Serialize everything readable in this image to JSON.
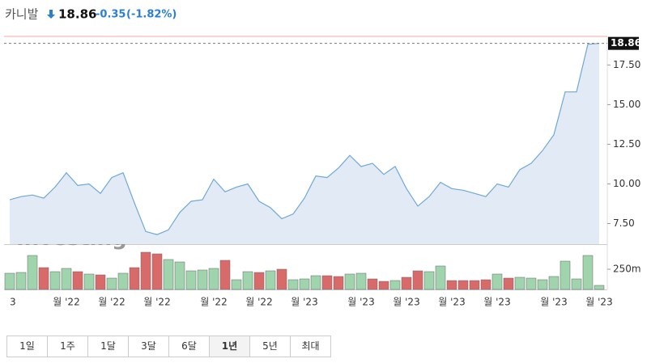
{
  "header": {
    "name": "카니발",
    "price": "18.86",
    "change": "-0.35",
    "change_pct": "(-1.82%)"
  },
  "chart_data": {
    "type": "line",
    "color": "#6fa8d6",
    "area_color": "#e2ebf5",
    "categories": [
      "3",
      null,
      null,
      null,
      null,
      "월 '22",
      null,
      null,
      null,
      "월 '22",
      null,
      null,
      null,
      "월 '22",
      null,
      null,
      null,
      null,
      "월 '22",
      null,
      null,
      null,
      "월 '22",
      null,
      null,
      null,
      "월 '23",
      null,
      null,
      null,
      null,
      "월 '23",
      null,
      null,
      null,
      "월 '23",
      null,
      null,
      null,
      "월 '23",
      null,
      null,
      null,
      "월 '23",
      null,
      null,
      null,
      null,
      "월 '23",
      null,
      null,
      null,
      "월 '23"
    ],
    "values": [
      9.0,
      9.2,
      9.3,
      9.1,
      9.8,
      10.7,
      9.9,
      10.0,
      9.4,
      10.4,
      10.7,
      8.8,
      7.0,
      6.8,
      7.1,
      8.2,
      8.9,
      9.0,
      10.3,
      9.5,
      9.8,
      10.0,
      8.9,
      8.5,
      7.8,
      8.1,
      9.1,
      10.5,
      10.4,
      11.0,
      11.8,
      11.1,
      11.3,
      10.6,
      11.1,
      9.7,
      8.6,
      9.2,
      10.1,
      9.7,
      9.6,
      9.4,
      9.2,
      10.0,
      9.8,
      10.9,
      11.3,
      12.1,
      13.1,
      15.8,
      15.8,
      18.8,
      18.86
    ],
    "ylim": [
      6.2,
      19.2
    ],
    "yticks": [
      {
        "value": 7.5,
        "label": "7.50"
      },
      {
        "value": 10,
        "label": "10.00"
      },
      {
        "value": 12.5,
        "label": "12.50"
      },
      {
        "value": 15,
        "label": "15.00"
      },
      {
        "value": 17.5,
        "label": "17.50"
      }
    ],
    "last": {
      "value": 18.86,
      "label": "18.86"
    },
    "grid": false,
    "volume": {
      "values": [
        200,
        210,
        420,
        270,
        220,
        260,
        220,
        190,
        180,
        140,
        200,
        270,
        460,
        440,
        370,
        340,
        230,
        240,
        260,
        360,
        120,
        220,
        210,
        230,
        250,
        120,
        130,
        170,
        170,
        160,
        190,
        200,
        130,
        100,
        110,
        150,
        230,
        220,
        290,
        110,
        110,
        110,
        120,
        190,
        140,
        150,
        140,
        120,
        160,
        350,
        130,
        420,
        50
      ],
      "colors": [
        "#9fd4ac",
        "#9fd4ac",
        "#9fd4ac",
        "#d96a6a",
        "#9fd4ac",
        "#9fd4ac",
        "#d96a6a",
        "#9fd4ac",
        "#d96a6a",
        "#9fd4ac",
        "#9fd4ac",
        "#d96a6a",
        "#d96a6a",
        "#d96a6a",
        "#9fd4ac",
        "#9fd4ac",
        "#9fd4ac",
        "#9fd4ac",
        "#9fd4ac",
        "#d96a6a",
        "#9fd4ac",
        "#9fd4ac",
        "#d96a6a",
        "#9fd4ac",
        "#d96a6a",
        "#9fd4ac",
        "#9fd4ac",
        "#9fd4ac",
        "#d96a6a",
        "#d96a6a",
        "#9fd4ac",
        "#9fd4ac",
        "#d96a6a",
        "#d96a6a",
        "#9fd4ac",
        "#d96a6a",
        "#d96a6a",
        "#9fd4ac",
        "#9fd4ac",
        "#d96a6a",
        "#d96a6a",
        "#d96a6a",
        "#d96a6a",
        "#9fd4ac",
        "#d96a6a",
        "#9fd4ac",
        "#9fd4ac",
        "#9fd4ac",
        "#9fd4ac",
        "#9fd4ac",
        "#9fd4ac",
        "#9fd4ac",
        "#9fd4ac"
      ],
      "ylim": [
        0,
        550
      ],
      "yticks": [
        {
          "value": 250,
          "label": "250m"
        }
      ]
    },
    "watermark": {
      "main": "Investing",
      "suffix": ".com"
    }
  },
  "ranges": {
    "buttons": [
      "1일",
      "1주",
      "1달",
      "3달",
      "6달",
      "1년",
      "5년",
      "최대"
    ],
    "selected": 5
  }
}
